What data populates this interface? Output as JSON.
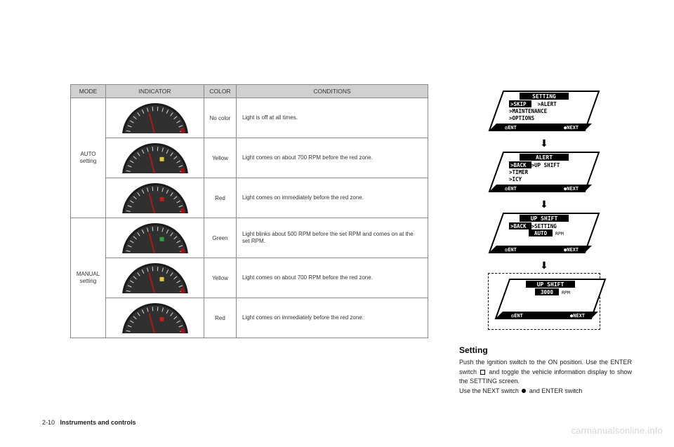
{
  "table": {
    "headers": {
      "mode": "MODE",
      "indicator": "INDICATOR",
      "color": "COLOR",
      "conditions": "CONDITIONS"
    },
    "groups": [
      {
        "mode_label": "AUTO\nsetting",
        "rows": [
          {
            "needle_color": "#b01818",
            "dot_color": null,
            "color": "No color",
            "condition": "Light is off at all times."
          },
          {
            "needle_color": "#b01818",
            "dot_color": "#e0c840",
            "color": "Yellow",
            "condition": "Light comes on about 700 RPM before the red zone."
          },
          {
            "needle_color": "#b01818",
            "dot_color": "#c02020",
            "color": "Red",
            "condition": "Light comes on immediately before the red zone."
          }
        ]
      },
      {
        "mode_label": "MANUAL\nsetting",
        "rows": [
          {
            "needle_color": "#b01818",
            "dot_color": "#30a040",
            "color": "Green",
            "condition": "Light blinks about 500 RPM before the set RPM and comes on at the set RPM."
          },
          {
            "needle_color": "#b01818",
            "dot_color": "#e0c840",
            "color": "Yellow",
            "condition": "Light comes on about 700 RPM before the red zone."
          },
          {
            "needle_color": "#b01818",
            "dot_color": "#c02020",
            "color": "Red",
            "condition": "Light comes on immediately before the red zone."
          }
        ]
      }
    ]
  },
  "screens": [
    {
      "title": "SETTING",
      "rows": [
        ">SKIP    >ALERT",
        ">MAINTENANCE",
        ">OPTIONS"
      ],
      "footer_left": "ENT",
      "footer_right": "NEXT",
      "box": false
    },
    {
      "title": "ALERT",
      "rows": [
        ">BACK  >UP SHIFT",
        ">TIMER",
        ">ICY"
      ],
      "footer_left": "ENT",
      "footer_right": "NEXT",
      "box": false
    },
    {
      "title": "UP SHIFT",
      "rows": [
        ">BACK  >SETTING"
      ],
      "tag": "AUTO",
      "tag_suffix": "RPM",
      "footer_left": "ENT",
      "footer_right": "NEXT",
      "box": false
    },
    {
      "title": "UP SHIFT",
      "rows": [],
      "tag": "3000",
      "tag_suffix": "RPM",
      "footer_left": "ENT",
      "footer_right": "NEXT",
      "box": true
    }
  ],
  "body": {
    "heading": "Setting",
    "p1a": "Push the ignition switch to the ON position. Use the ENTER switch ",
    "p1b": " and toggle the vehicle information display to show the SETTING screen.",
    "p2a": "Use the NEXT switch ",
    "p2b": " and ENTER switch"
  },
  "footer": {
    "page": "2-10",
    "section": "Instruments and controls"
  },
  "watermark": "carmanualsonline.info",
  "colors": {
    "gauge_face": "#303030",
    "gauge_rim": "#1a1a1a",
    "gauge_tick": "#d8d8d8",
    "gauge_redzone": "#a01010"
  }
}
